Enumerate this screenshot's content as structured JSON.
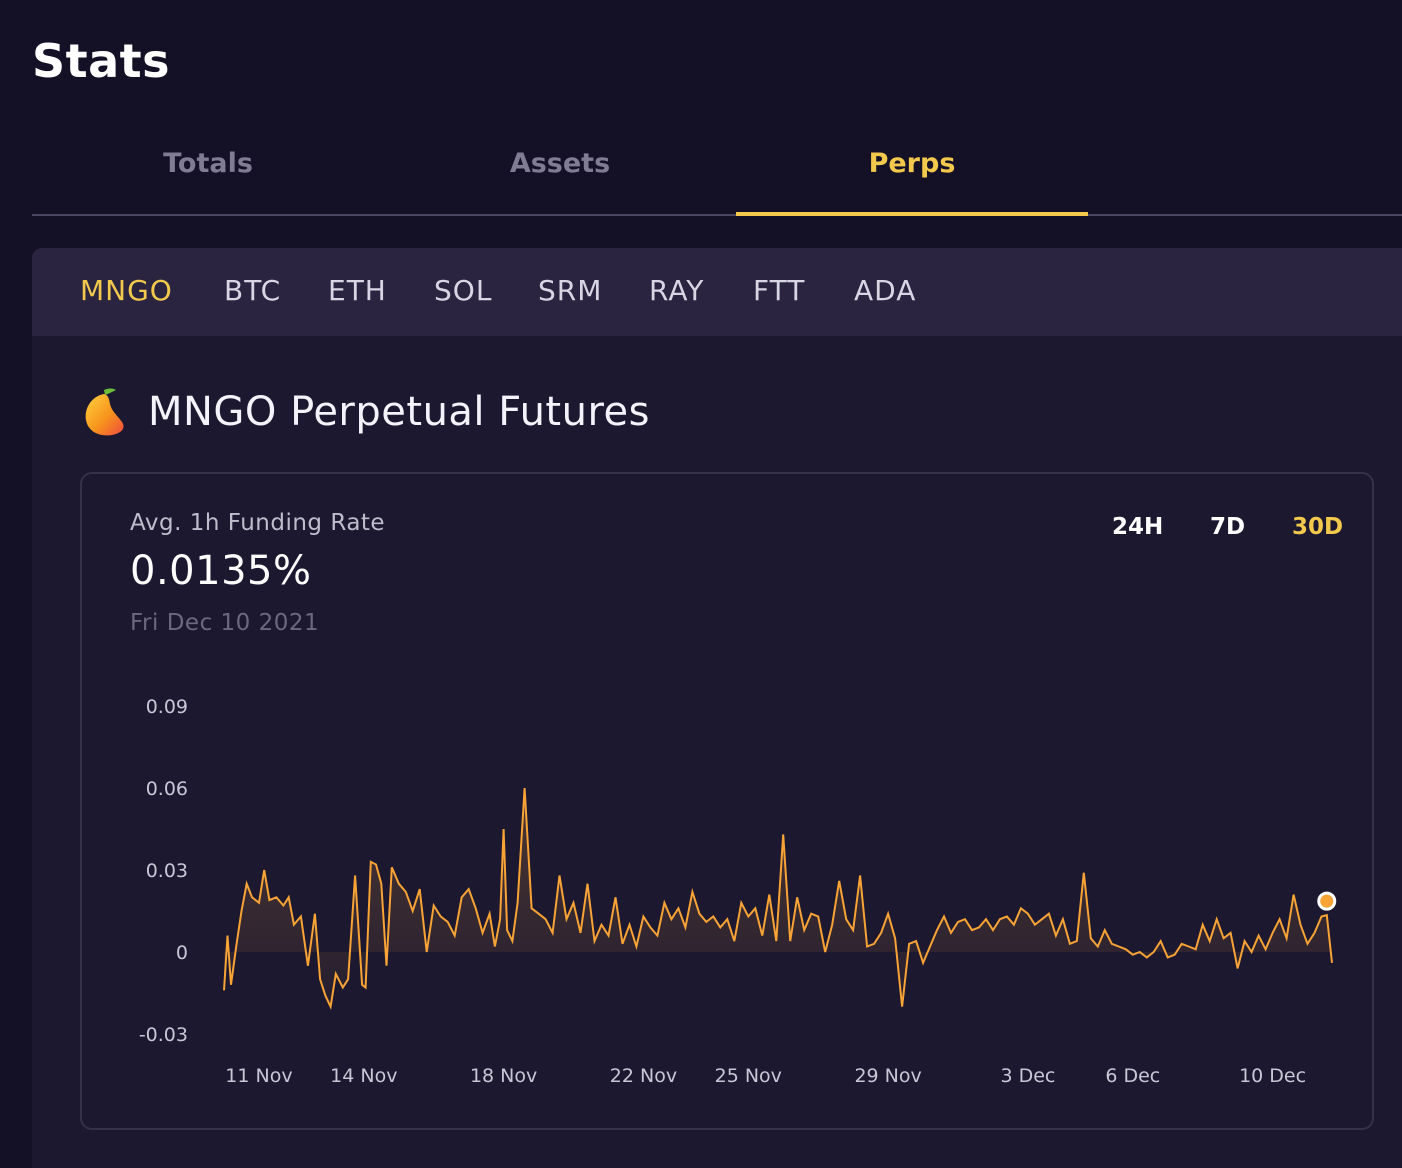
{
  "page": {
    "title": "Stats"
  },
  "tabs": [
    {
      "label": "Totals",
      "active": false
    },
    {
      "label": "Assets",
      "active": false
    },
    {
      "label": "Perps",
      "active": true
    }
  ],
  "markets": [
    {
      "label": "MNGO",
      "active": true
    },
    {
      "label": "BTC",
      "active": false
    },
    {
      "label": "ETH",
      "active": false
    },
    {
      "label": "SOL",
      "active": false
    },
    {
      "label": "SRM",
      "active": false
    },
    {
      "label": "RAY",
      "active": false
    },
    {
      "label": "FTT",
      "active": false
    },
    {
      "label": "ADA",
      "active": false
    }
  ],
  "section": {
    "title": "MNGO Perpetual Futures",
    "icon": "mango-icon"
  },
  "metric": {
    "label": "Avg. 1h Funding Rate",
    "value": "0.0135%",
    "date": "Fri Dec 10 2021"
  },
  "ranges": [
    {
      "label": "24H",
      "active": false
    },
    {
      "label": "7D",
      "active": false
    },
    {
      "label": "30D",
      "active": true
    }
  ],
  "colors": {
    "accent": "#f2c94c",
    "line": "#f7a335",
    "background": "#141026",
    "panel": "#1c1830",
    "panel_header": "#2a2440"
  },
  "chart_data": {
    "type": "area",
    "title": "",
    "xlabel": "",
    "ylabel": "",
    "x_tick_labels": [
      "11 Nov",
      "14 Nov",
      "18 Nov",
      "22 Nov",
      "25 Nov",
      "29 Nov",
      "3 Dec",
      "6 Dec",
      "10 Dec"
    ],
    "y_tick_labels": [
      "0.09",
      "0.06",
      "0.03",
      "0",
      "-0.03"
    ],
    "y_ticks": [
      0.09,
      0.06,
      0.03,
      0,
      -0.03
    ],
    "ylim": [
      -0.03,
      0.09
    ],
    "x_range_days": [
      10.0,
      41.7
    ],
    "x_tick_positions_days": [
      11,
      14,
      18,
      22,
      25,
      29,
      33,
      36,
      40
    ],
    "grid": false,
    "series": [
      {
        "x": [
          10.0,
          10.1,
          10.2,
          10.35,
          10.5,
          10.65,
          10.8,
          11.0,
          11.15,
          11.3,
          11.5,
          11.7,
          11.85,
          12.0,
          12.2,
          12.4,
          12.6,
          12.75,
          12.9,
          13.05,
          13.2,
          13.4,
          13.55,
          13.75,
          13.95,
          14.05,
          14.2,
          14.35,
          14.5,
          14.65,
          14.8,
          15.0,
          15.2,
          15.4,
          15.6,
          15.8,
          16.0,
          16.2,
          16.4,
          16.6,
          16.8,
          17.0,
          17.2,
          17.4,
          17.6,
          17.75,
          17.9,
          18.0,
          18.1,
          18.25,
          18.4,
          18.6,
          18.8,
          19.0,
          19.2,
          19.4,
          19.6,
          19.8,
          20.0,
          20.2,
          20.4,
          20.6,
          20.8,
          21.0,
          21.2,
          21.4,
          21.6,
          21.8,
          22.0,
          22.2,
          22.4,
          22.6,
          22.8,
          23.0,
          23.2,
          23.4,
          23.6,
          23.8,
          24.0,
          24.2,
          24.4,
          24.6,
          24.8,
          25.0,
          25.2,
          25.4,
          25.6,
          25.8,
          26.0,
          26.2,
          26.4,
          26.6,
          26.8,
          27.0,
          27.2,
          27.4,
          27.6,
          27.8,
          28.0,
          28.2,
          28.4,
          28.6,
          28.8,
          29.0,
          29.2,
          29.4,
          29.6,
          29.8,
          30.0,
          30.2,
          30.4,
          30.6,
          30.8,
          31.0,
          31.2,
          31.4,
          31.6,
          31.8,
          32.0,
          32.2,
          32.4,
          32.6,
          32.8,
          33.0,
          33.2,
          33.4,
          33.6,
          33.8,
          34.0,
          34.2,
          34.4,
          34.6,
          34.8,
          35.0,
          35.2,
          35.4,
          35.6,
          35.8,
          36.0,
          36.2,
          36.4,
          36.6,
          36.8,
          37.0,
          37.2,
          37.4,
          37.6,
          37.8,
          38.0,
          38.2,
          38.4,
          38.6,
          38.8,
          39.0,
          39.2,
          39.4,
          39.6,
          39.8,
          40.0,
          40.2,
          40.4,
          40.6,
          40.8,
          41.0,
          41.2,
          41.4,
          41.55,
          41.7
        ],
        "values": [
          -0.014,
          0.006,
          -0.012,
          0.002,
          0.015,
          0.025,
          0.02,
          0.018,
          0.03,
          0.019,
          0.02,
          0.017,
          0.02,
          0.01,
          0.013,
          -0.005,
          0.014,
          -0.01,
          -0.016,
          -0.02,
          -0.008,
          -0.013,
          -0.01,
          0.028,
          -0.012,
          -0.013,
          0.033,
          0.032,
          0.025,
          -0.005,
          0.031,
          0.025,
          0.022,
          0.015,
          0.023,
          0.0,
          0.017,
          0.013,
          0.011,
          0.006,
          0.02,
          0.023,
          0.016,
          0.007,
          0.014,
          0.002,
          0.012,
          0.045,
          0.008,
          0.004,
          0.018,
          0.06,
          0.016,
          0.014,
          0.012,
          0.007,
          0.028,
          0.012,
          0.018,
          0.007,
          0.025,
          0.004,
          0.01,
          0.006,
          0.02,
          0.003,
          0.01,
          0.002,
          0.013,
          0.009,
          0.006,
          0.018,
          0.012,
          0.016,
          0.009,
          0.022,
          0.014,
          0.011,
          0.013,
          0.009,
          0.012,
          0.004,
          0.018,
          0.013,
          0.016,
          0.006,
          0.021,
          0.004,
          0.043,
          0.004,
          0.02,
          0.008,
          0.014,
          0.013,
          0.0,
          0.01,
          0.026,
          0.012,
          0.008,
          0.028,
          0.002,
          0.003,
          0.007,
          0.014,
          0.005,
          -0.02,
          0.003,
          0.004,
          -0.004,
          0.002,
          0.008,
          0.013,
          0.007,
          0.011,
          0.012,
          0.008,
          0.009,
          0.012,
          0.008,
          0.012,
          0.013,
          0.01,
          0.016,
          0.014,
          0.01,
          0.012,
          0.014,
          0.006,
          0.012,
          0.003,
          0.004,
          0.029,
          0.005,
          0.002,
          0.008,
          0.003,
          0.002,
          0.001,
          -0.001,
          0.0,
          -0.002,
          0.0,
          0.004,
          -0.002,
          -0.001,
          0.003,
          0.002,
          0.001,
          0.01,
          0.004,
          0.012,
          0.005,
          0.007,
          -0.006,
          0.004,
          0.0,
          0.006,
          0.001,
          0.007,
          0.012,
          0.005,
          0.021,
          0.01,
          0.003,
          0.007,
          0.013,
          0.0135,
          -0.004
        ]
      }
    ]
  }
}
